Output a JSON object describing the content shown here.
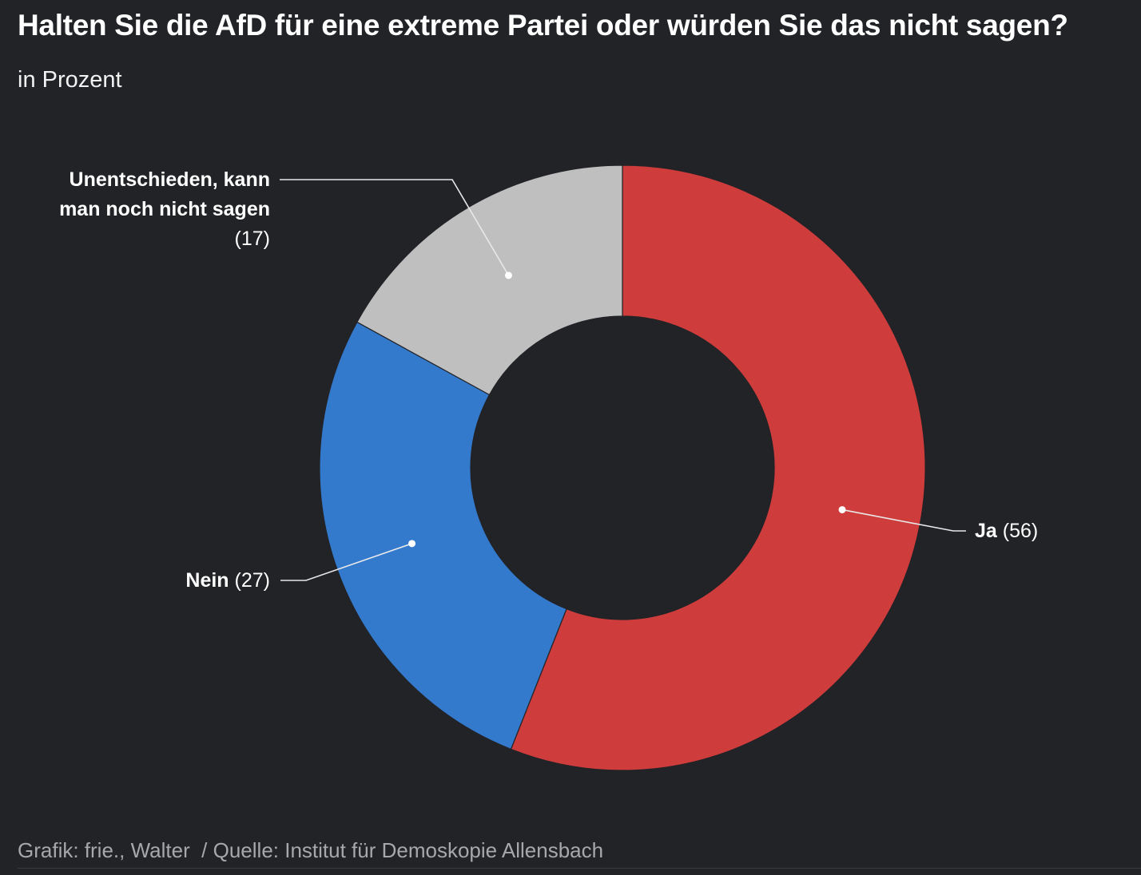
{
  "chart_data": {
    "type": "pie",
    "variant": "donut",
    "title": "Halten Sie die AfD für eine extreme Partei oder würden Sie das nicht sagen?",
    "subtitle": "in Prozent",
    "slices": [
      {
        "id": "ja",
        "label_lines": [
          "Ja"
        ],
        "value": 56,
        "value_text": "(56)",
        "color": "#cf3c3c"
      },
      {
        "id": "nein",
        "label_lines": [
          "Nein"
        ],
        "value": 27,
        "value_text": "(27)",
        "color": "#337acd"
      },
      {
        "id": "unentschieden",
        "label_lines": [
          "Unentschieden, kann",
          "man noch nicht sagen"
        ],
        "value": 17,
        "value_text": "(17)",
        "color": "#bfbfbf"
      }
    ],
    "source": "Grafik: frie., Walter  / Quelle: Institut für Demoskopie Allensbach"
  },
  "colors": {
    "background": "#222327",
    "text": "#ffffff",
    "source_text": "#a7a8ab"
  }
}
